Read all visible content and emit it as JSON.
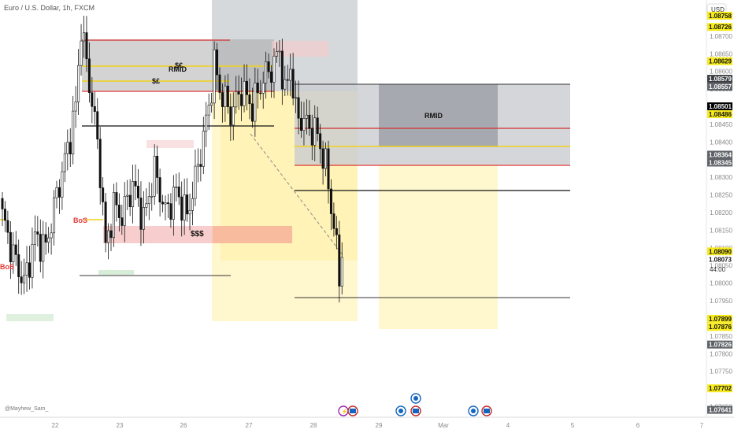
{
  "header": {
    "title": "Euro / U.S. Dollar, 1h, FXCM"
  },
  "watermark": "@Mayhew_Sam_",
  "axis": {
    "currency": "USD",
    "countdown": "44:00",
    "ticks": [
      "1.08700",
      "1.08650",
      "1.08600",
      "1.08550",
      "1.08500",
      "1.08450",
      "1.08400",
      "1.08350",
      "1.08300",
      "1.08250",
      "1.08200",
      "1.08150",
      "1.08100",
      "1.08050",
      "1.08000",
      "1.07950",
      "1.07900",
      "1.07850",
      "1.07800",
      "1.07750",
      "1.07700",
      "1.07650"
    ],
    "x_labels": [
      "22",
      "23",
      "26",
      "27",
      "28",
      "29",
      "Mar",
      "4",
      "5",
      "6",
      "7"
    ]
  },
  "price_tags": [
    {
      "value": "1.08758",
      "style": "yellow"
    },
    {
      "value": "1.08726",
      "style": "yellow"
    },
    {
      "value": "1.08629",
      "style": "yellow"
    },
    {
      "value": "1.08579",
      "style": "dark"
    },
    {
      "value": "1.08557",
      "style": "gray"
    },
    {
      "value": "1.08501",
      "style": "black"
    },
    {
      "value": "1.08486",
      "style": "yellow"
    },
    {
      "value": "1.08364",
      "style": "gray"
    },
    {
      "value": "1.08345",
      "style": "gray"
    },
    {
      "value": "1.08090",
      "style": "yellow"
    },
    {
      "value": "1.08073",
      "style": "plain"
    },
    {
      "value": "1.07899",
      "style": "yellow"
    },
    {
      "value": "1.07876",
      "style": "yellow"
    },
    {
      "value": "1.07826",
      "style": "gray"
    },
    {
      "value": "1.07702",
      "style": "yellow"
    },
    {
      "value": "1.07641",
      "style": "gray"
    }
  ],
  "annotations": {
    "bos_left": "BoS",
    "bos_mid": "BoS",
    "rmid_left": "RMID",
    "rmid_right": "RMID",
    "liq_top_a": "$€",
    "liq_top_b": "$£",
    "liq_mid": "$$$"
  },
  "colors": {
    "up": "#2b2b2b",
    "down": "#000000",
    "red_line": "#d32f2f",
    "yellow_line": "#f2d21b",
    "accent_bos": "#e53935"
  },
  "chart_data": {
    "type": "candlestick",
    "symbol": "EURUSD",
    "timeframe": "1h",
    "ylim": [
      1.0762,
      1.0878
    ],
    "key_levels": [
      1.08726,
      1.08629,
      1.08579,
      1.08557,
      1.08501,
      1.08486,
      1.08364,
      1.08345,
      1.0809,
      1.07899,
      1.07876,
      1.07826,
      1.07702,
      1.07641
    ],
    "last_price": 1.08073,
    "close_path": [
      [
        0,
        1.0819
      ],
      [
        4,
        1.0808
      ],
      [
        8,
        1.08
      ],
      [
        12,
        1.0813
      ],
      [
        16,
        1.081
      ],
      [
        20,
        1.0825
      ],
      [
        24,
        1.0838
      ],
      [
        27,
        1.085
      ],
      [
        29,
        1.0873
      ],
      [
        31,
        1.0862
      ],
      [
        34,
        1.0846
      ],
      [
        36,
        1.0832
      ],
      [
        38,
        1.081
      ],
      [
        41,
        1.0822
      ],
      [
        44,
        1.0819
      ],
      [
        48,
        1.0828
      ],
      [
        52,
        1.0818
      ],
      [
        56,
        1.0832
      ],
      [
        60,
        1.082
      ],
      [
        64,
        1.0826
      ],
      [
        68,
        1.0819
      ],
      [
        72,
        1.0833
      ],
      [
        76,
        1.085
      ],
      [
        78,
        1.0862
      ],
      [
        80,
        1.0855
      ],
      [
        84,
        1.0848
      ],
      [
        88,
        1.0855
      ],
      [
        92,
        1.085
      ],
      [
        96,
        1.0858
      ],
      [
        100,
        1.0862
      ],
      [
        102,
        1.0866
      ],
      [
        104,
        1.0853
      ],
      [
        106,
        1.0862
      ],
      [
        108,
        1.0848
      ],
      [
        112,
        1.0845
      ],
      [
        116,
        1.0842
      ],
      [
        119,
        1.0833
      ],
      [
        121,
        1.0822
      ],
      [
        123,
        1.081
      ],
      [
        124,
        1.08
      ],
      [
        125,
        1.08073
      ]
    ]
  }
}
